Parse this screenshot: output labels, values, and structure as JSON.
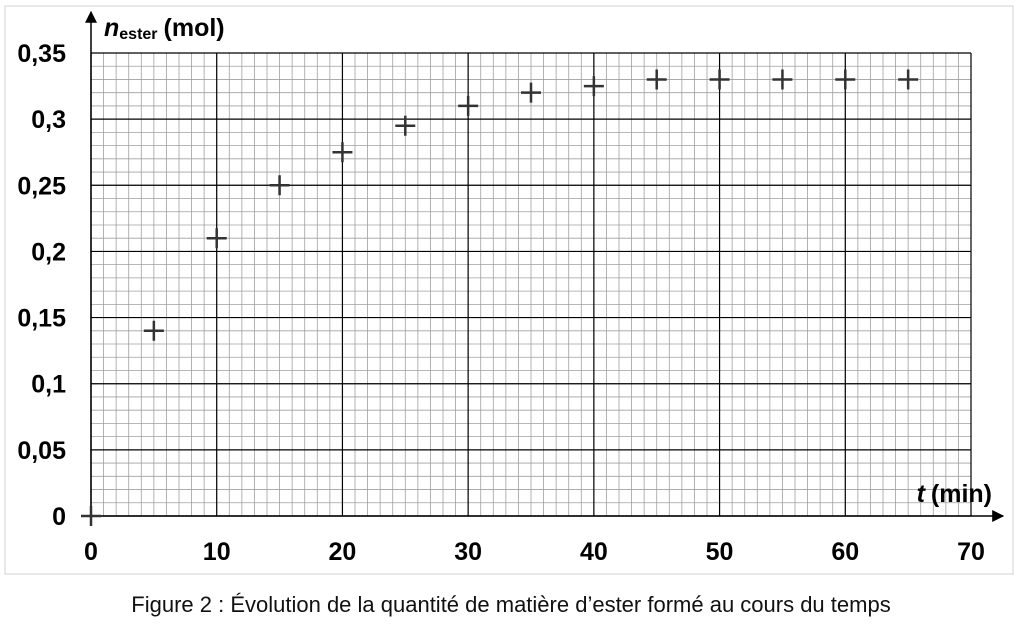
{
  "chart_data": {
    "type": "scatter",
    "caption": "Figure 2 : Évolution de la quantité de matière d’ester formé au cours du temps",
    "ylabel": {
      "symbol": "n",
      "subscript": "ester",
      "unit": "(mol)"
    },
    "xlabel": {
      "symbol": "t",
      "unit": "(min)"
    },
    "x": [
      0,
      5,
      10,
      15,
      20,
      25,
      30,
      35,
      40,
      45,
      50,
      55,
      60,
      65
    ],
    "values": [
      0,
      0.14,
      0.21,
      0.25,
      0.275,
      0.295,
      0.31,
      0.32,
      0.325,
      0.33,
      0.33,
      0.33,
      0.33,
      0.33
    ],
    "color": "#333333",
    "xlim": [
      0,
      70
    ],
    "xticks": [
      0,
      10,
      20,
      30,
      40,
      50,
      60,
      70
    ],
    "ylim": [
      0,
      0.35
    ],
    "yticks": [
      0,
      {
        "value": 0.05,
        "label": "0,05"
      },
      {
        "value": 0.1,
        "label": "0,1"
      },
      {
        "value": 0.15,
        "label": "0,15"
      },
      {
        "value": 0.2,
        "label": "0,2"
      },
      {
        "value": 0.25,
        "label": "0,25"
      },
      {
        "value": 0.3,
        "label": "0,3"
      },
      {
        "value": 0.35,
        "label": "0,35"
      }
    ],
    "grid": true,
    "minor_grid": {
      "x": 1,
      "y": 0.01
    }
  }
}
